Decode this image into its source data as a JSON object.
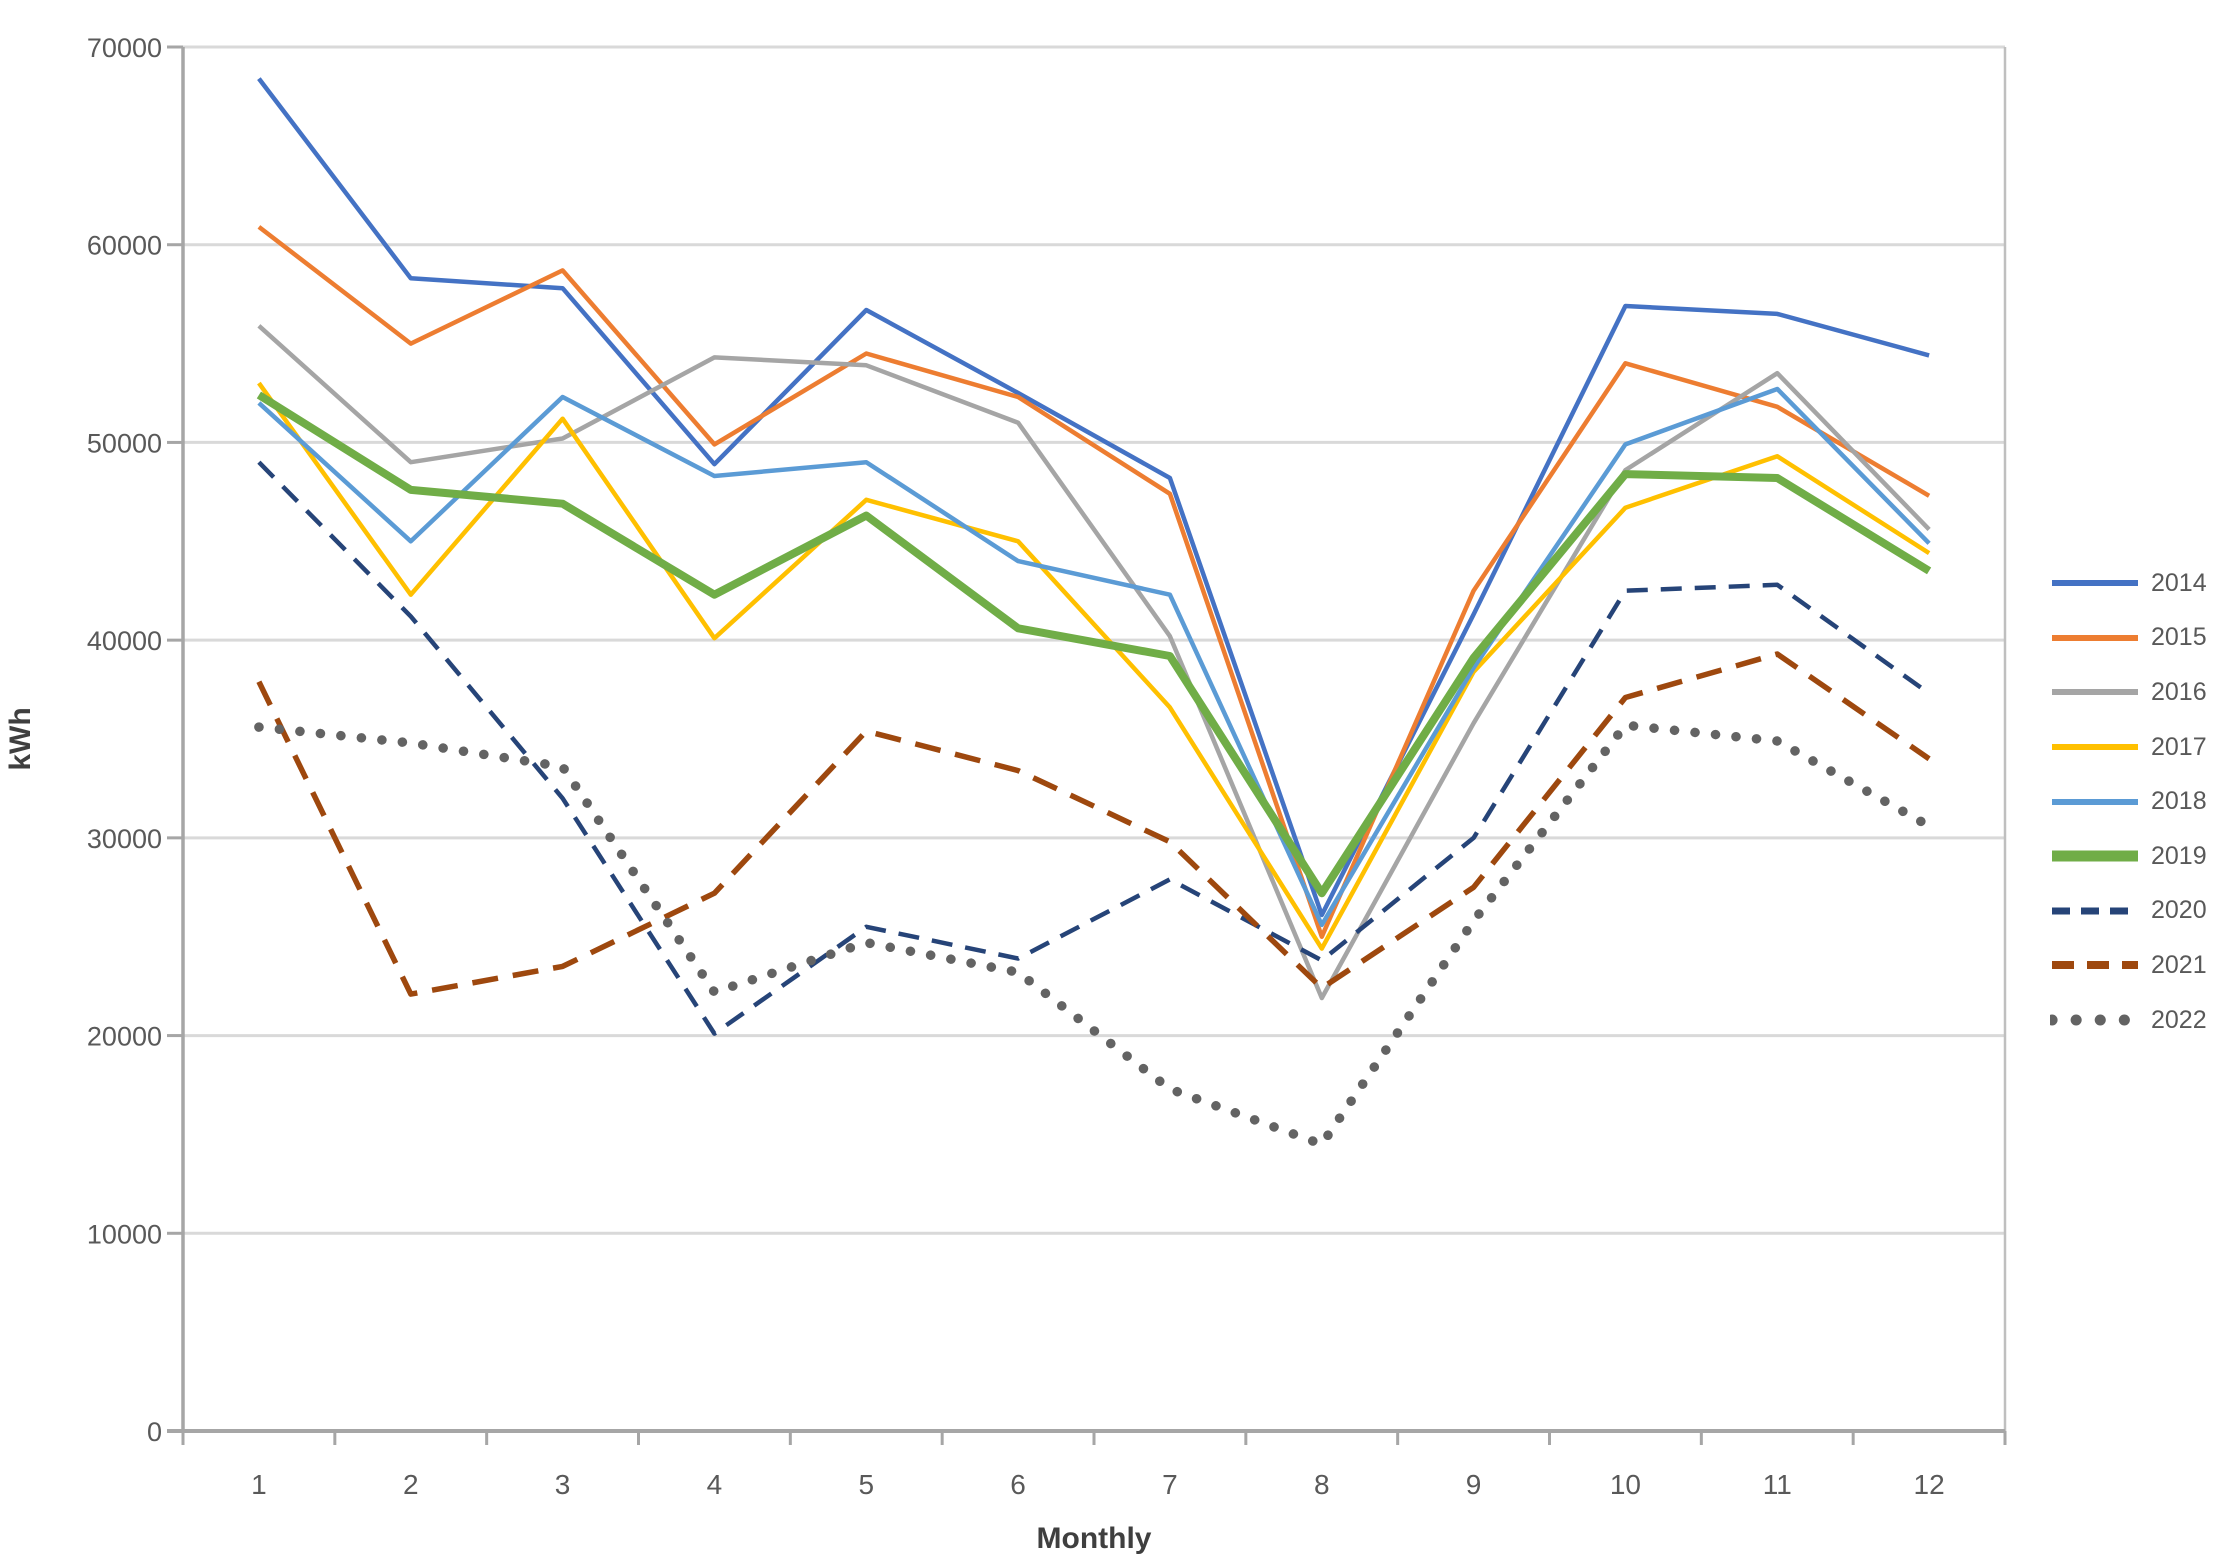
{
  "chart_data": {
    "type": "line",
    "title": "",
    "xlabel": "Monthly",
    "ylabel": "kWh",
    "categories": [
      "1",
      "2",
      "3",
      "4",
      "5",
      "6",
      "7",
      "8",
      "9",
      "10",
      "11",
      "12"
    ],
    "ylim": [
      0,
      70000
    ],
    "ytick_interval": 10000,
    "ytick_labels": [
      "0",
      "10000",
      "20000",
      "30000",
      "40000",
      "50000",
      "60000",
      "70000"
    ],
    "grid": true,
    "legend_position": "right",
    "colors": {
      "gridline": "#D9D9D9",
      "axis": "#A6A6A6",
      "plot_border": "#BFBFBF",
      "tick_text": "#595959",
      "axis_title_text": "#3F3F3F"
    },
    "series": [
      {
        "name": "2014",
        "color": "#4472C4",
        "style": "solid",
        "width": 4.5,
        "values": [
          68400,
          58300,
          57800,
          48900,
          56700,
          52500,
          48200,
          26100,
          41300,
          56900,
          56500,
          54400
        ]
      },
      {
        "name": "2015",
        "color": "#ED7D31",
        "style": "solid",
        "width": 4.5,
        "values": [
          60900,
          55000,
          58700,
          49900,
          54500,
          52300,
          47400,
          25000,
          42500,
          54000,
          51800,
          47300
        ]
      },
      {
        "name": "2016",
        "color": "#A5A5A5",
        "style": "solid",
        "width": 4.5,
        "values": [
          55900,
          49000,
          50200,
          54300,
          53900,
          51000,
          40200,
          21900,
          35800,
          48600,
          53500,
          45600
        ]
      },
      {
        "name": "2017",
        "color": "#FFC000",
        "style": "solid",
        "width": 4.5,
        "values": [
          53000,
          42300,
          51200,
          40100,
          47100,
          45000,
          36600,
          24400,
          38400,
          46700,
          49300,
          44400
        ]
      },
      {
        "name": "2018",
        "color": "#5B9BD5",
        "style": "solid",
        "width": 4.5,
        "values": [
          52000,
          45000,
          52300,
          48300,
          49000,
          44000,
          42300,
          25600,
          38600,
          49900,
          52700,
          44900
        ]
      },
      {
        "name": "2019",
        "color": "#70AD47",
        "style": "solid",
        "width": 8,
        "values": [
          52400,
          47600,
          46900,
          42300,
          46300,
          40600,
          39200,
          27200,
          39100,
          48400,
          48200,
          43500
        ]
      },
      {
        "name": "2020",
        "color": "#264478",
        "style": "dashed",
        "width": 4.5,
        "values": [
          49000,
          41200,
          32000,
          20100,
          25500,
          23900,
          27900,
          23800,
          30000,
          42500,
          42800,
          37300
        ]
      },
      {
        "name": "2021",
        "color": "#9E480E",
        "style": "long-dashed",
        "width": 5.5,
        "values": [
          37900,
          22100,
          23500,
          27200,
          35400,
          33400,
          29800,
          22400,
          27500,
          37100,
          39300,
          34000
        ]
      },
      {
        "name": "2022",
        "color": "#636363",
        "style": "dotted",
        "width": 9.5,
        "values": [
          35600,
          34800,
          33600,
          22200,
          24700,
          23200,
          17300,
          14500,
          25800,
          35700,
          34900,
          30600
        ]
      }
    ]
  }
}
